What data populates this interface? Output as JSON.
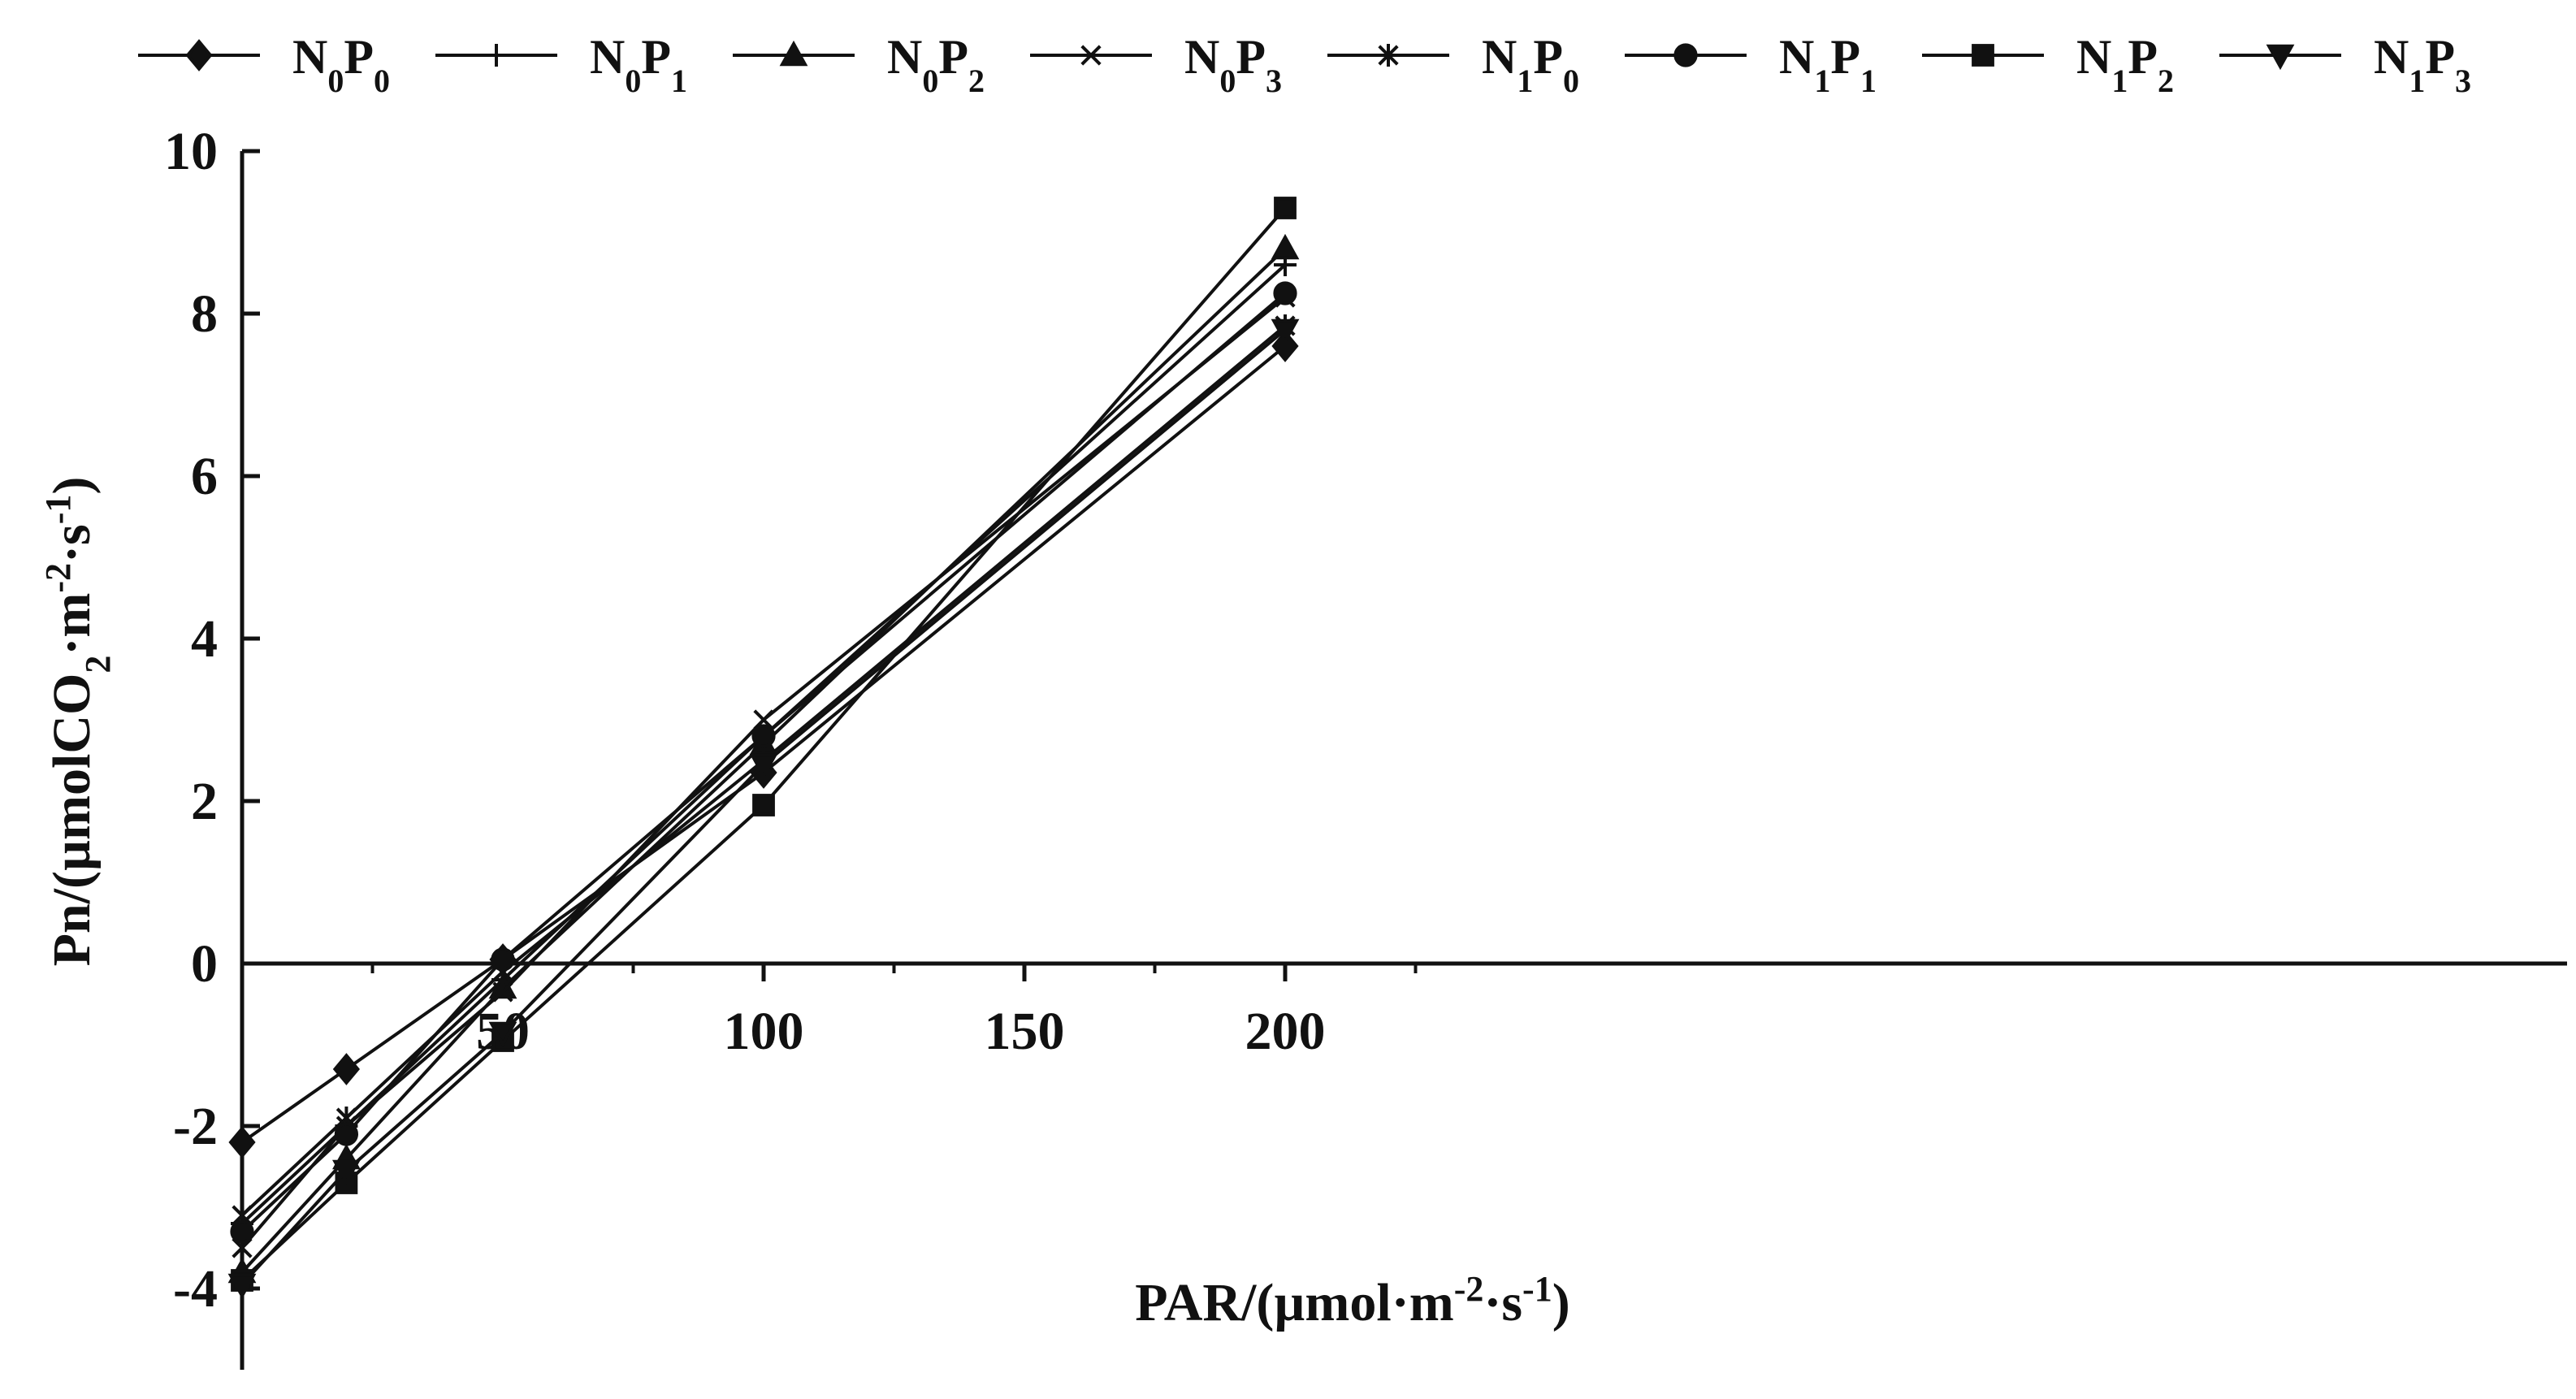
{
  "chart_data": {
    "type": "line",
    "x": [
      0,
      20,
      50,
      100,
      200
    ],
    "series": [
      {
        "name": "N0P0",
        "label_parts": [
          "N",
          "0",
          "P",
          "0"
        ],
        "marker": "diamond",
        "values": [
          -2.2,
          -1.3,
          0.05,
          2.35,
          7.6
        ]
      },
      {
        "name": "N0P1",
        "label_parts": [
          "N",
          "0",
          "P",
          "1"
        ],
        "marker": "plus",
        "values": [
          -3.2,
          -2.0,
          -0.2,
          2.8,
          8.6
        ]
      },
      {
        "name": "N0P2",
        "label_parts": [
          "N",
          "0",
          "P",
          "2"
        ],
        "marker": "triangle-up",
        "values": [
          -3.8,
          -2.4,
          -0.3,
          2.7,
          8.8
        ]
      },
      {
        "name": "N0P3",
        "label_parts": [
          "N",
          "0",
          "P",
          "3"
        ],
        "marker": "x",
        "values": [
          -3.5,
          -2.0,
          -0.35,
          3.0,
          8.2
        ]
      },
      {
        "name": "N1P0",
        "label_parts": [
          "N",
          "1",
          "P",
          "0"
        ],
        "marker": "asterisk",
        "values": [
          -3.1,
          -1.9,
          -0.1,
          2.5,
          7.85
        ]
      },
      {
        "name": "N1P1",
        "label_parts": [
          "N",
          "1",
          "P",
          "1"
        ],
        "marker": "circle",
        "values": [
          -3.3,
          -2.1,
          0.05,
          2.8,
          8.25
        ]
      },
      {
        "name": "N1P2",
        "label_parts": [
          "N",
          "1",
          "P",
          "2"
        ],
        "marker": "square",
        "values": [
          -3.9,
          -2.7,
          -0.95,
          1.95,
          9.3
        ]
      },
      {
        "name": "N1P3",
        "label_parts": [
          "N",
          "1",
          "P",
          "3"
        ],
        "marker": "triangle-down",
        "values": [
          -3.95,
          -2.55,
          -0.85,
          2.45,
          7.8
        ]
      }
    ],
    "xlim": [
      -0.3,
      220
    ],
    "ylim": [
      -5,
      10
    ],
    "x_ticks": [
      50,
      100,
      150,
      200
    ],
    "x_tick_labels": [
      "50",
      "100",
      "150",
      "200"
    ],
    "y_ticks": [
      -4,
      -2,
      0,
      2,
      4,
      6,
      8,
      10
    ],
    "y_tick_labels": [
      "-4",
      "-2",
      "0",
      "2",
      "4",
      "6",
      "8",
      "10"
    ],
    "xlabel_parts": {
      "pre": "PAR/(µmol·m",
      "sup1": "-2",
      "mid": "·s",
      "sup2": "-1",
      "post": ")"
    },
    "ylabel_parts": {
      "pre": "Pn/(µmolCO",
      "sub": "2",
      "mid1": "·m",
      "sup1": "-2",
      "mid2": "·s",
      "sup2": "-1",
      "post": ")"
    },
    "grid": false,
    "legend_position": "top",
    "line_color": "#111111"
  }
}
